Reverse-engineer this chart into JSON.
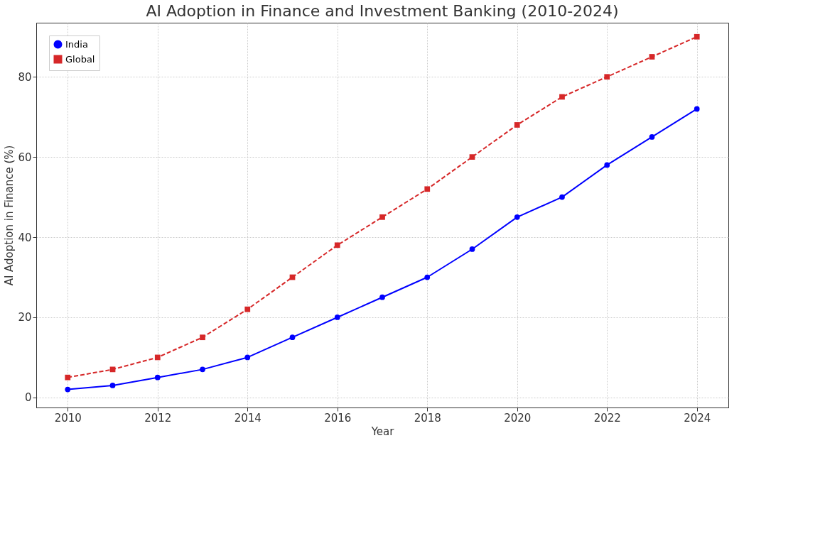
{
  "chart_data": {
    "type": "line",
    "title": "AI Adoption in Finance and Investment Banking (2010-2024)",
    "xlabel": "Year",
    "ylabel": "AI Adoption in Finance (%)",
    "x": [
      2010,
      2011,
      2012,
      2013,
      2014,
      2015,
      2016,
      2017,
      2018,
      2019,
      2020,
      2021,
      2022,
      2023,
      2024
    ],
    "series": [
      {
        "name": "India",
        "color": "#0000ff",
        "marker": "circle",
        "line_style": "solid",
        "values": [
          2,
          3,
          5,
          7,
          10,
          15,
          20,
          25,
          30,
          37,
          45,
          50,
          58,
          65,
          72
        ]
      },
      {
        "name": "Global",
        "color": "#d62728",
        "marker": "square",
        "line_style": "dashed",
        "values": [
          5,
          7,
          10,
          15,
          22,
          30,
          38,
          45,
          52,
          60,
          68,
          75,
          80,
          85,
          90
        ]
      }
    ],
    "xlim": [
      2009.3,
      2024.7
    ],
    "xticks": [
      2010,
      2012,
      2014,
      2016,
      2018,
      2020,
      2022,
      2024
    ],
    "ylim": [
      -2.5,
      93.5
    ],
    "yticks": [
      0,
      20,
      40,
      60,
      80
    ],
    "grid": true,
    "legend": "top left"
  }
}
